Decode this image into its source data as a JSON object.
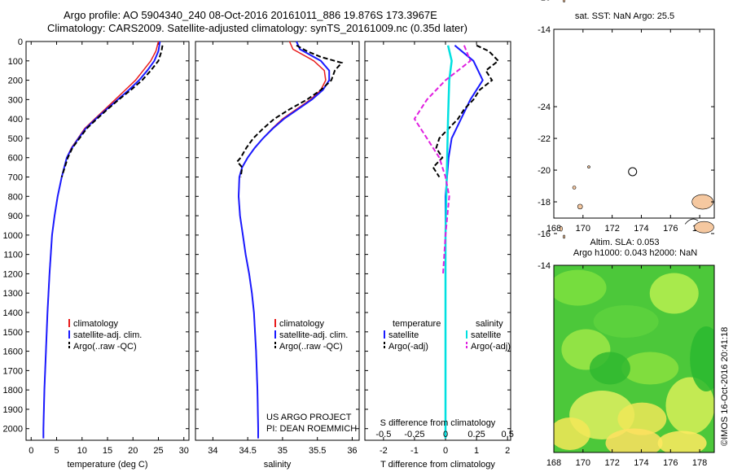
{
  "titles": {
    "line1": "Argo profile: AO 5904340_240 08-Oct-2016 20161011_886 19.876S 173.3967E",
    "line2": "Climatology: CARS2009. Satellite-adjusted climatology: synTS_20161009.nc (0.35d later)"
  },
  "depth_ticks": [
    0,
    100,
    200,
    300,
    400,
    500,
    600,
    700,
    800,
    900,
    1000,
    1100,
    1200,
    1300,
    1400,
    1500,
    1600,
    1700,
    1800,
    1900,
    2000
  ],
  "colors": {
    "climatology": "#e81c1c",
    "satellite": "#1a1aff",
    "argo": "#000000",
    "sal_sat": "#00e0e0",
    "sal_argo": "#e020e0",
    "land": "#f5c8a0",
    "marker": "#44cc22"
  },
  "chart_data": [
    {
      "type": "line",
      "xlabel": "temperature (deg C)",
      "ylim": [
        2060,
        0
      ],
      "xlim": [
        -1,
        31
      ],
      "xticks": [
        0,
        5,
        10,
        15,
        20,
        25,
        30
      ],
      "legend": [
        "climatology",
        "satellite-adj. clim.",
        "Argo(..raw -QC)"
      ],
      "series": [
        {
          "name": "climatology",
          "depth": [
            0,
            50,
            100,
            150,
            200,
            250,
            300,
            350,
            400,
            450,
            500,
            550,
            600,
            700,
            800,
            900,
            1000,
            1200,
            1400,
            1600,
            1800,
            2000,
            2050
          ],
          "values": [
            25,
            24.5,
            23.5,
            22,
            20.5,
            18.5,
            16.5,
            14.5,
            12.5,
            10.5,
            9.2,
            7.9,
            7.0,
            6.0,
            5.2,
            4.6,
            4.1,
            3.6,
            3.2,
            2.9,
            2.6,
            2.4,
            2.4
          ]
        },
        {
          "name": "satellite-adj. clim.",
          "depth": [
            0,
            50,
            100,
            150,
            200,
            250,
            300,
            350,
            400,
            450,
            500,
            550,
            600,
            700,
            800,
            900,
            1000,
            1200,
            1400,
            1600,
            1800,
            2000,
            2050
          ],
          "values": [
            25.3,
            25.0,
            24.2,
            22.8,
            21.2,
            19.2,
            17.0,
            14.8,
            12.7,
            10.7,
            9.3,
            8.0,
            7.0,
            6.0,
            5.2,
            4.6,
            4.1,
            3.6,
            3.2,
            2.9,
            2.6,
            2.4,
            2.4
          ]
        },
        {
          "name": "Argo(..raw -QC)",
          "depth": [
            20,
            50,
            100,
            150,
            200,
            250,
            300,
            350,
            400,
            450,
            500,
            550,
            600,
            650,
            700
          ],
          "values": [
            25.8,
            25.6,
            25.0,
            23.5,
            21.8,
            19.6,
            17.2,
            15.0,
            12.9,
            10.9,
            9.5,
            8.1,
            7.2,
            6.6,
            6.0
          ]
        }
      ]
    },
    {
      "type": "line",
      "xlabel": "salinity",
      "ylim": [
        2060,
        0
      ],
      "xlim": [
        33.75,
        36.1
      ],
      "xticks": [
        34,
        34.5,
        35,
        35.5,
        36
      ],
      "legend": [
        "climatology",
        "satellite-adj. clim.",
        "Argo(..raw -QC)"
      ],
      "annotation": [
        "US ARGO PROJECT",
        "PI: DEAN ROEMMICH"
      ],
      "series": [
        {
          "name": "climatology",
          "depth": [
            0,
            40,
            100,
            150,
            200,
            250,
            300,
            350,
            400,
            450,
            500,
            550,
            600,
            650,
            700,
            800,
            900,
            1000,
            1100,
            1200,
            1300,
            1400,
            1600,
            1800,
            2000,
            2050
          ],
          "values": [
            35.1,
            35.15,
            35.45,
            35.6,
            35.62,
            35.55,
            35.4,
            35.2,
            35.0,
            34.85,
            34.72,
            34.6,
            34.5,
            34.42,
            34.38,
            34.37,
            34.39,
            34.43,
            34.47,
            34.52,
            34.56,
            34.59,
            34.62,
            34.64,
            34.65,
            34.65
          ]
        },
        {
          "name": "satellite-adj. clim.",
          "depth": [
            0,
            40,
            100,
            150,
            200,
            250,
            300,
            350,
            400,
            450,
            500,
            550,
            600,
            650,
            700,
            800,
            900,
            1000,
            1100,
            1200,
            1300,
            1400,
            1600,
            1800,
            2000,
            2050
          ],
          "values": [
            35.2,
            35.25,
            35.55,
            35.67,
            35.67,
            35.58,
            35.42,
            35.22,
            35.02,
            34.86,
            34.72,
            34.6,
            34.5,
            34.42,
            34.38,
            34.37,
            34.39,
            34.43,
            34.47,
            34.52,
            34.56,
            34.59,
            34.62,
            34.64,
            34.65,
            34.65
          ]
        },
        {
          "name": "Argo(..raw -QC)",
          "depth": [
            20,
            50,
            80,
            110,
            130,
            150,
            200,
            250,
            300,
            350,
            400,
            450,
            500,
            550,
            600,
            620,
            650,
            700
          ],
          "values": [
            35.2,
            35.35,
            35.55,
            35.85,
            35.8,
            35.75,
            35.7,
            35.55,
            35.35,
            35.1,
            34.88,
            34.72,
            34.58,
            34.48,
            34.4,
            34.35,
            34.42,
            34.4
          ]
        }
      ]
    },
    {
      "type": "line",
      "xlabel": "T difference from climatology",
      "top_axis_label": "S difference from climatology",
      "ylim": [
        2060,
        0
      ],
      "xlim": [
        -2.6,
        2.1
      ],
      "xticks": [
        -2,
        -1,
        0,
        1,
        2
      ],
      "top_xticks": [
        "-0.5",
        "-0.25",
        "0",
        "0.25",
        "0.5"
      ],
      "legend_left": [
        "temperature",
        "satellite",
        "Argo(-adj)"
      ],
      "legend_right": [
        "salinity",
        "satellite",
        "Argo(-adj)"
      ],
      "series": [
        {
          "name": "satellite",
          "depth": [
            20,
            100,
            200,
            300,
            400,
            500,
            600,
            700,
            800,
            1000,
            1500,
            2000
          ],
          "values": [
            0.3,
            0.9,
            1.2,
            0.8,
            0.5,
            0.2,
            0.1,
            0.05,
            0,
            0,
            0,
            0
          ]
        },
        {
          "name": "Argo(-adj)",
          "depth": [
            20,
            50,
            100,
            150,
            200,
            250,
            300,
            350,
            400,
            450,
            500,
            550,
            600,
            650,
            700
          ],
          "values": [
            1.0,
            1.4,
            1.7,
            1.3,
            1.5,
            1.1,
            0.9,
            0.6,
            0.4,
            0.1,
            -0.2,
            -0.3,
            -0.1,
            -0.4,
            -0.2
          ]
        },
        {
          "name": "satellite",
          "depth": [
            20,
            100,
            200,
            400,
            700,
            1000,
            1500,
            2050
          ],
          "values": [
            0.02,
            0.05,
            0.03,
            0.02,
            0.01,
            0,
            0,
            0
          ]
        },
        {
          "name": "Argo(-adj)",
          "depth": [
            20,
            100,
            150,
            200,
            300,
            400,
            500,
            600,
            700,
            800,
            1000,
            1200
          ],
          "values": [
            0.15,
            0.2,
            0.1,
            0,
            -0.15,
            -0.25,
            -0.15,
            -0.05,
            0,
            0.03,
            0,
            -0.02
          ]
        }
      ]
    }
  ],
  "map_top": {
    "title": "sat. SST: NaN Argo: 25.5",
    "yticks": [
      "-14",
      "-16",
      "-18",
      "-20",
      "-22",
      "-24"
    ],
    "xticks": [
      "168",
      "170",
      "172",
      "174",
      "176",
      "178"
    ],
    "marker": {
      "lon": 173.4,
      "lat": -19.9
    }
  },
  "map_bottom": {
    "title1": "Altim. SLA: 0.053",
    "title2": "Argo h1000: 0.043 h2000: NaN",
    "yticks": [
      "-14",
      "-16",
      "-18",
      "-20",
      "-22",
      "-24"
    ],
    "xticks": [
      "168",
      "170",
      "172",
      "174",
      "176",
      "178"
    ]
  },
  "stamp": "©IMOS 16-Oct-2016 20:41:18"
}
